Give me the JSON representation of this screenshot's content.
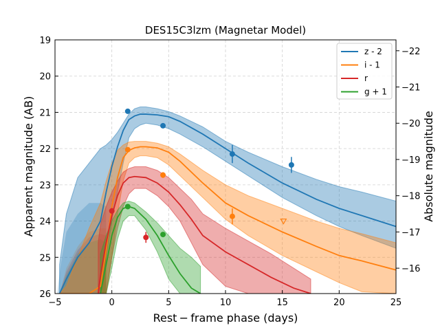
{
  "chart_data": {
    "type": "line",
    "title": "DES15C3lzm (Magnetar Model)",
    "xlabel": "Rest − frame phase (days)",
    "ylabel": "Apparent magnitude (AB)",
    "ylabel_right": "Absolute magnitude",
    "xlim": [
      -5,
      25
    ],
    "ylim": [
      26,
      19
    ],
    "ylim_right": [
      -15.3,
      -22.3
    ],
    "x_ticks": [
      -5,
      0,
      5,
      10,
      15,
      20,
      25
    ],
    "y_ticks": [
      19,
      20,
      21,
      22,
      23,
      24,
      25,
      26
    ],
    "y_ticks_right": [
      -16,
      -17,
      -18,
      -19,
      -20,
      -21,
      -22
    ],
    "x_tick_labels": [
      "−5",
      "0",
      "5",
      "10",
      "15",
      "20",
      "25"
    ],
    "y_tick_labels": [
      "19",
      "20",
      "21",
      "22",
      "23",
      "24",
      "25",
      "26"
    ],
    "y_tick_labels_right": [
      "−16",
      "−17",
      "−18",
      "−19",
      "−20",
      "−21",
      "−22"
    ],
    "grid": true,
    "legend_position": "top-right",
    "series": [
      {
        "name": "z - 2",
        "color": "#1f77b4",
        "model": {
          "x": [
            -4.6,
            -4.0,
            -3.0,
            -2.0,
            -1.0,
            -0.5,
            0.0,
            0.5,
            1.0,
            1.5,
            2.0,
            2.5,
            3.0,
            4.0,
            5.0,
            6.0,
            8.0,
            10.0,
            12.0,
            15.0,
            18.0,
            20.0,
            22.0,
            25.0
          ],
          "y": [
            26.0,
            25.6,
            25.0,
            24.6,
            24.0,
            23.2,
            22.5,
            21.95,
            21.5,
            21.2,
            21.1,
            21.05,
            21.05,
            21.07,
            21.12,
            21.25,
            21.6,
            22.0,
            22.4,
            22.95,
            23.4,
            23.65,
            23.85,
            24.15
          ],
          "lower": [
            25.2,
            23.8,
            22.8,
            22.4,
            22.0,
            21.9,
            21.75,
            21.55,
            21.3,
            21.05,
            20.9,
            20.85,
            20.85,
            20.9,
            20.98,
            21.1,
            21.4,
            21.8,
            22.1,
            22.5,
            22.85,
            23.05,
            23.2,
            23.45
          ],
          "upper": [
            26.0,
            26.0,
            26.0,
            26.0,
            26.0,
            25.0,
            24.0,
            23.2,
            22.4,
            21.7,
            21.45,
            21.35,
            21.3,
            21.35,
            21.45,
            21.6,
            21.95,
            22.35,
            22.75,
            23.35,
            23.85,
            24.15,
            24.4,
            24.75
          ]
        },
        "points": [
          {
            "x": 1.4,
            "y": 20.97,
            "err": 0.05
          },
          {
            "x": 4.5,
            "y": 21.37,
            "err": 0.06
          },
          {
            "x": 10.6,
            "y": 22.15,
            "err": 0.25
          },
          {
            "x": 15.8,
            "y": 22.45,
            "err": 0.22
          }
        ],
        "upper_limits": []
      },
      {
        "name": "i - 1",
        "color": "#ff7f0e",
        "model": {
          "x": [
            -4.6,
            -4.0,
            -3.0,
            -2.0,
            -1.0,
            -0.5,
            0.0,
            0.5,
            1.0,
            1.5,
            2.0,
            2.5,
            3.0,
            4.0,
            5.0,
            6.0,
            8.0,
            10.0,
            12.0,
            15.0,
            18.0,
            20.0,
            22.0,
            25.0
          ],
          "y": [
            26.0,
            26.0,
            26.0,
            26.0,
            25.8,
            24.8,
            23.6,
            22.8,
            22.25,
            22.05,
            21.98,
            21.95,
            21.95,
            21.98,
            22.1,
            22.35,
            22.95,
            23.5,
            23.85,
            24.3,
            24.7,
            24.95,
            25.1,
            25.35
          ],
          "lower": [
            26.0,
            25.8,
            25.0,
            24.2,
            23.5,
            22.9,
            22.4,
            22.05,
            21.9,
            21.82,
            21.8,
            21.8,
            21.8,
            21.85,
            21.95,
            22.15,
            22.6,
            23.0,
            23.3,
            23.65,
            24.0,
            24.2,
            24.35,
            24.6
          ],
          "upper": [
            26.0,
            26.0,
            26.0,
            26.0,
            26.0,
            26.0,
            25.0,
            23.8,
            22.9,
            22.4,
            22.25,
            22.2,
            22.2,
            22.25,
            22.45,
            22.75,
            23.35,
            23.95,
            24.4,
            24.95,
            25.4,
            25.7,
            25.95,
            26.0
          ]
        },
        "points": [
          {
            "x": 1.4,
            "y": 22.03,
            "err": 0.05
          },
          {
            "x": 4.5,
            "y": 22.73,
            "err": 0.08
          },
          {
            "x": 10.6,
            "y": 23.87,
            "err": 0.22
          }
        ],
        "upper_limits": [
          {
            "x": 15.1,
            "y": 24.0
          }
        ]
      },
      {
        "name": "r",
        "color": "#d62728",
        "model": {
          "x": [
            -1.2,
            -1.0,
            -0.5,
            0.0,
            0.5,
            1.0,
            1.5,
            2.0,
            3.0,
            4.0,
            5.0,
            6.0,
            7.0,
            8.0,
            10.0,
            12.0,
            14.0,
            16.0,
            17.5
          ],
          "y": [
            26.0,
            25.5,
            24.6,
            23.85,
            23.3,
            22.95,
            22.8,
            22.77,
            22.8,
            22.95,
            23.2,
            23.55,
            23.95,
            24.4,
            24.85,
            25.2,
            25.55,
            25.85,
            26.0
          ],
          "lower": [
            24.6,
            24.1,
            23.6,
            23.2,
            22.9,
            22.65,
            22.55,
            22.5,
            22.5,
            22.6,
            22.8,
            23.1,
            23.4,
            23.8,
            24.2,
            24.55,
            24.9,
            25.3,
            25.6
          ],
          "upper": [
            26.0,
            26.0,
            26.0,
            25.0,
            24.2,
            23.6,
            23.25,
            23.1,
            23.1,
            23.3,
            23.6,
            24.0,
            24.6,
            25.2,
            25.8,
            26.0,
            26.0,
            26.0,
            26.0
          ]
        },
        "points": [
          {
            "x": 0.0,
            "y": 23.72,
            "err": 0.08
          },
          {
            "x": 3.0,
            "y": 24.45,
            "err": 0.15
          }
        ],
        "upper_limits": []
      },
      {
        "name": "g + 1",
        "color": "#2ca02c",
        "model": {
          "x": [
            -1.0,
            -0.5,
            0.0,
            0.5,
            1.0,
            1.5,
            2.0,
            3.0,
            4.0,
            5.0,
            6.0,
            7.0,
            7.8
          ],
          "y": [
            26.0,
            25.2,
            24.4,
            23.9,
            23.65,
            23.6,
            23.65,
            23.95,
            24.4,
            24.95,
            25.45,
            25.85,
            26.0
          ],
          "lower": [
            24.9,
            24.4,
            24.0,
            23.7,
            23.5,
            23.45,
            23.5,
            23.75,
            24.05,
            24.4,
            24.75,
            25.0,
            25.25
          ],
          "upper": [
            26.0,
            26.0,
            25.3,
            24.5,
            24.0,
            23.85,
            23.85,
            24.25,
            24.85,
            25.6,
            26.0,
            26.0,
            26.0
          ]
        },
        "points": [
          {
            "x": 1.4,
            "y": 23.6,
            "err": 0.05
          },
          {
            "x": 4.5,
            "y": 24.37,
            "err": 0.06
          }
        ],
        "upper_limits": []
      }
    ],
    "early_bands": [
      {
        "color": "#1f77b4",
        "x": [
          -4.8,
          -4.5,
          -4.0,
          -3.0,
          -2.0,
          -1.0,
          -0.5
        ],
        "top": [
          26.0,
          25.2,
          24.3,
          23.8,
          23.5,
          23.5,
          23.6
        ]
      },
      {
        "color": "#ff7f0e",
        "x": [
          -4.6,
          -4.0,
          -3.0,
          -2.0,
          -1.0,
          -0.5
        ],
        "top": [
          26.0,
          25.3,
          24.7,
          24.3,
          24.2,
          24.2
        ]
      },
      {
        "color": "#d62728",
        "x": [
          -4.6,
          -4.0,
          -3.0,
          -2.0,
          -1.0,
          -0.5
        ],
        "top": [
          26.0,
          25.4,
          24.8,
          24.45,
          24.35,
          24.4
        ]
      },
      {
        "color": "#2ca02c",
        "x": [
          -4.6,
          -4.0,
          -3.0,
          -2.0,
          -1.0,
          -0.5
        ],
        "top": [
          26.0,
          25.5,
          24.9,
          24.6,
          24.5,
          24.6
        ]
      }
    ]
  }
}
